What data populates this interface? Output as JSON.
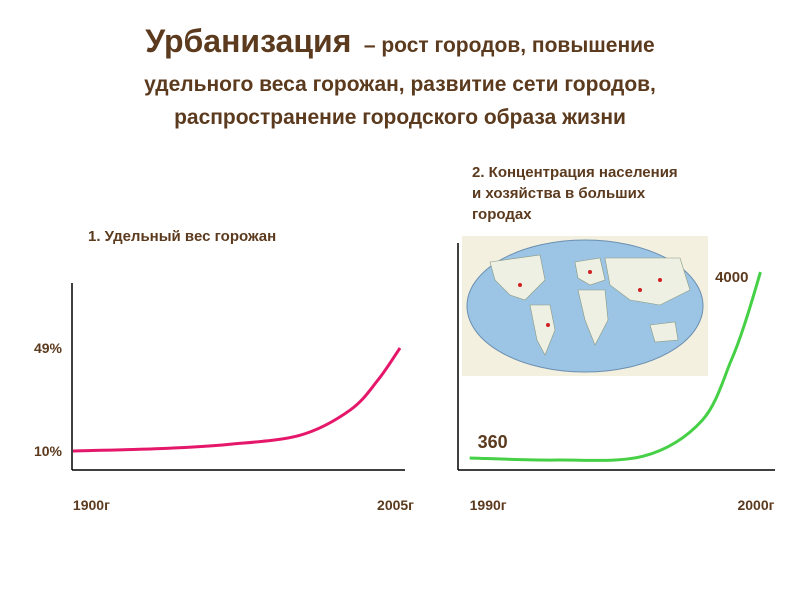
{
  "title": {
    "term": "Урбанизация",
    "lines": [
      "– рост городов, повышение",
      "удельного веса горожан, развитие сети городов,",
      "распространение городского образа жизни"
    ]
  },
  "chart_data": [
    {
      "type": "line",
      "title": "1. Удельный  вес горожан",
      "color": "#e5176a",
      "x": [
        1900,
        1930,
        1950,
        1973,
        1989,
        1998,
        2005
      ],
      "values": [
        10,
        11,
        12.5,
        16,
        25.5,
        37,
        49
      ],
      "xlim": [
        1899.7,
        2006.6
      ],
      "ylim": [
        2.8,
        73.6
      ],
      "xticks": [
        {
          "value": 1900,
          "label": "1900г"
        },
        {
          "value": 2005,
          "label": "2005г"
        }
      ],
      "yticks": [
        {
          "value": 10,
          "label": "10%"
        },
        {
          "value": 49,
          "label": "49%"
        }
      ]
    },
    {
      "type": "line",
      "title": [
        "2. Концентрация населения",
        "и хозяйства в больших",
        "городах"
      ],
      "color": "#46d046",
      "x": [
        1990,
        1993,
        1996,
        1998,
        1999,
        1999.5,
        2000
      ],
      "values": [
        360,
        320,
        400,
        1100,
        2280,
        3060,
        4000
      ],
      "value_labels": [
        "360",
        null,
        null,
        null,
        null,
        null,
        "4000"
      ],
      "xlim": [
        1989.6,
        2000.5
      ],
      "ylim": [
        125,
        4570
      ],
      "xticks": [
        {
          "value": 1990,
          "label": "1990г"
        },
        {
          "value": 2000,
          "label": "2000г"
        }
      ]
    }
  ]
}
